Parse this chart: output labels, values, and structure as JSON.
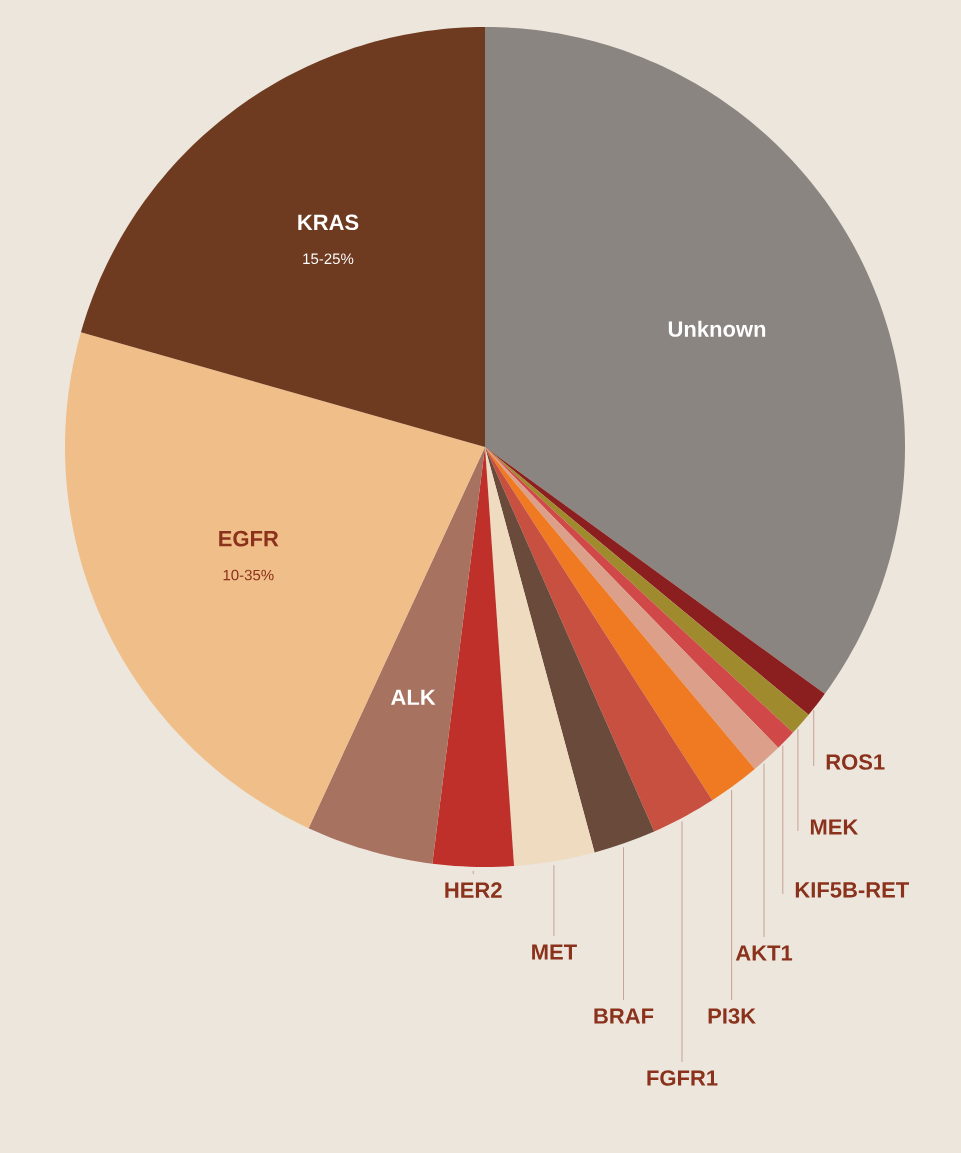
{
  "chart_data": {
    "type": "pie",
    "categories": [
      "Unknown",
      "ROS1",
      "MEK",
      "KIF5B-RET",
      "AKT1",
      "PI3K",
      "FGFR1",
      "BRAF",
      "MET",
      "HER2",
      "ALK",
      "EGFR",
      "KRAS"
    ],
    "values": [
      35.0,
      1.0,
      0.9,
      0.8,
      1.2,
      2.0,
      2.5,
      2.4,
      3.1,
      3.1,
      4.9,
      22.5,
      20.6
    ],
    "colors": [
      "#8a8580",
      "#8b1e1e",
      "#a08a2e",
      "#d04848",
      "#dca08a",
      "#f07a22",
      "#c85040",
      "#6a4a3a",
      "#efdcc0",
      "#c0302a",
      "#a87260",
      "#f0be88",
      "#6e3a20"
    ],
    "annotations": [
      {
        "text": "10-35%",
        "x": "EGFR"
      },
      {
        "text": "15-25%",
        "x": "KRAS"
      }
    ]
  }
}
